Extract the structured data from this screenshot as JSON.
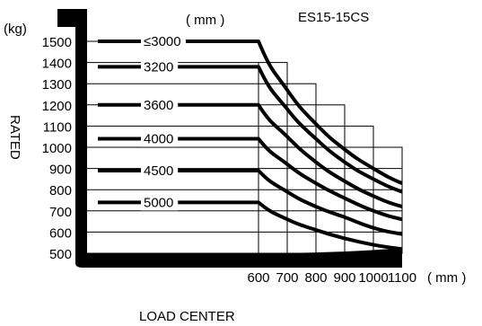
{
  "chart_data": {
    "type": "line",
    "title": "ES15-15CS",
    "ylabel": "RATED",
    "yunit": "(kg)",
    "xlabel": "LOAD CENTER",
    "xunit": "( mm )",
    "series_unit": "( mm )",
    "x_ticks": [
      "600",
      "700",
      "800",
      "900",
      "1000",
      "1100"
    ],
    "y_ticks": [
      "1500",
      "1400",
      "1300",
      "1200",
      "1100",
      "1000",
      "900",
      "800",
      "700",
      "600",
      "500"
    ],
    "xlim": [
      600,
      1100
    ],
    "ylim": [
      500,
      1500
    ],
    "grid": true,
    "x": [
      600,
      700,
      800,
      900,
      1000,
      1100
    ],
    "series": [
      {
        "name": "≤3000",
        "values": [
          1500,
          1270,
          1110,
          990,
          900,
          830
        ]
      },
      {
        "name": "3200",
        "values": [
          1380,
          1180,
          1040,
          930,
          850,
          790
        ]
      },
      {
        "name": "3600",
        "values": [
          1200,
          1050,
          930,
          840,
          770,
          720
        ]
      },
      {
        "name": "4000",
        "values": [
          1040,
          920,
          830,
          760,
          700,
          660
        ]
      },
      {
        "name": "4500",
        "values": [
          890,
          790,
          720,
          670,
          620,
          590
        ]
      },
      {
        "name": "5000",
        "values": [
          740,
          660,
          610,
          570,
          540,
          520
        ]
      }
    ]
  }
}
